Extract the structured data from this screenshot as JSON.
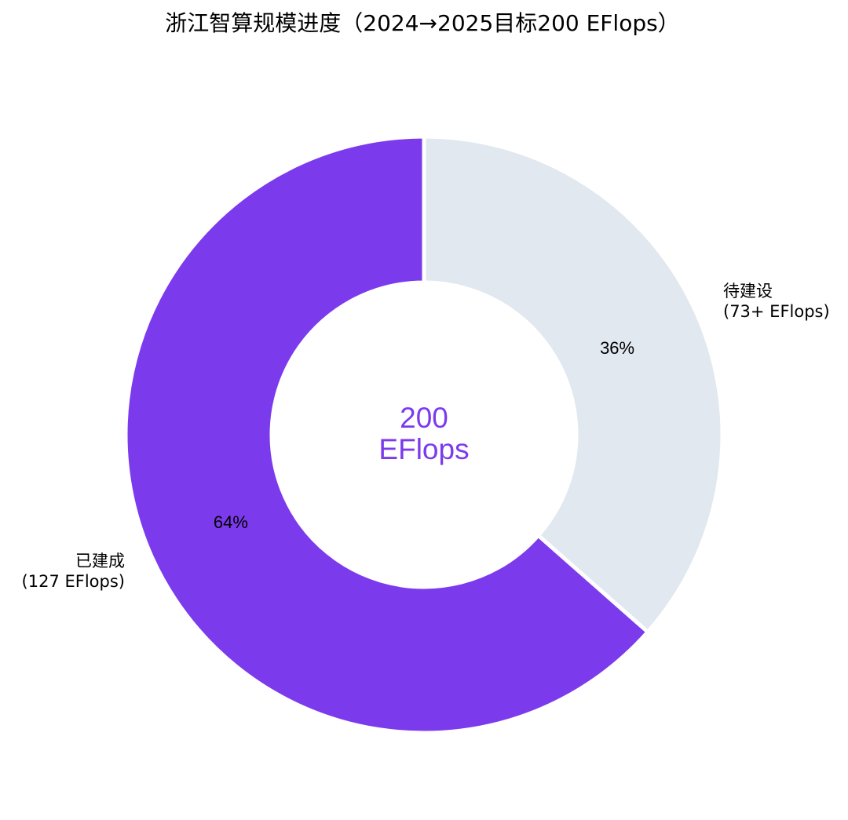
{
  "chart_data": {
    "type": "pie",
    "title": "浙江智算规模进度（2024→2025目标200 EFlops）",
    "donut": true,
    "slices": [
      {
        "label_line1": "已建成",
        "label_line2": "(127 EFlops)",
        "value": 127,
        "percent_label": "64%",
        "color": "#7c3aed"
      },
      {
        "label_line1": "待建设",
        "label_line2": "(73+ EFlops)",
        "value": 73,
        "percent_label": "36%",
        "color": "#e2e8f0"
      }
    ],
    "center": {
      "line1": "200",
      "line2": "EFlops",
      "color": "#7c3aed"
    },
    "start_angle": "12 o'clock",
    "direction": "counterclockwise",
    "legend": "none"
  }
}
